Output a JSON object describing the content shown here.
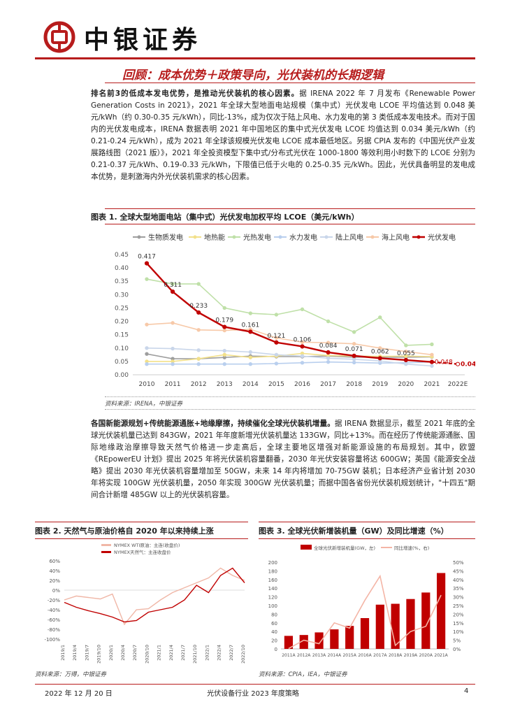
{
  "header": {
    "brand": "中银证券",
    "section_title": "回顾：成本优势＋政策导向，光伏装机的长期逻辑"
  },
  "para1": {
    "lead": "排名前3的低成本发电优势，是推动光伏装机的核心因素。",
    "body": "据 IRENA 2022 年 7 月发布《Renewable Power Generation Costs in 2021》，2021 年全球大型地面电站规模（集中式）光伏发电 LCOE 平均值达到 0.048 美元/kWh（约 0.30-0.35 元/kWh），同比-13%，成为仅次于陆上风电、水力发电的第 3 类低成本发电技术。而对于国内的光伏发电成本，IRENA 数据表明 2021 年中国地区的集中式光伏发电 LCOE 均值达到 0.034 美元/kWh（约 0.21-0.24 元/kWh），成为 2021 年全球该规模光伏发电 LCOE 成本最低地区。另据 CPIA 发布的《中国光伏产业发展路线图（2021 版）》，2021 年全投资模型下集中式/分布式光伏在 1000-1800 等效利用小时数下的 LCOE 分别为 0.21-0.37 元/kWh、0.19-0.33 元/kWh，下限值已低于火电的 0.25-0.35 元/kWh。因此，光伏具备明显的发电成本优势，是刺激海内外光伏装机需求的核心因素。"
  },
  "fig1": {
    "title": "图表 1. 全球大型地面电站（集中式）光伏发电加权平均 LCOE（美元/kWh）",
    "source": "资料来源：IRENA，中银证券"
  },
  "para2": {
    "lead": "各国新能源规划+传统能源通胀+地缘摩擦，持续催化全球光伏装机增量。",
    "body": "据 IRENA 数据显示，截至 2021 年底的全球光伏装机量已达到 843GW，2021 年年度新增光伏装机量达 133GW，同比+13%。而在经历了传统能源通胀、国际地缘政治摩擦导致天然气价格进一步走高后，全球主要地区增强对新能源设施的布局规划。其中，欧盟《REpowerEU 计划》提出 2025 年将光伏装机容量翻番，2030 年光伏安装容量将达 600GW；英国《能源安全战略》提出 2030 年光伏装机容量增加至 50GW，未来 14 年内将增加 70-75GW 装机；日本经济产业省计划 2030 年将实现 100GW 光伏装机量，2050 年实现 300GW 光伏装机量；而据中国各省份光伏装机规划统计，\"十四五\"期间合计新增 485GW 以上的光伏装机容量。"
  },
  "fig2": {
    "title": "图表 2. 天然气与原油价格自 2020 年以来持续上涨",
    "source": "资料来源：万得，中银证券"
  },
  "fig3": {
    "title": "图表 3. 全球光伏新增装机量（GW）及同比增速（%）",
    "source": "资料来源：CPIA，IEA，中银证券"
  },
  "footer": {
    "date": "2022 年 12 月 20 日",
    "title": "光伏设备行业 2023 年度策略",
    "page": "4"
  },
  "chart_data": [
    {
      "id": "lcoe",
      "type": "line",
      "categories": [
        "2010",
        "2011",
        "2012",
        "2013",
        "2014",
        "2015",
        "2016",
        "2017",
        "2018",
        "2019",
        "2020",
        "2021",
        "2022E"
      ],
      "ylim": [
        0,
        0.45
      ],
      "yticks": [
        "0.00",
        "0.05",
        "0.10",
        "0.15",
        "0.20",
        "0.25",
        "0.30",
        "0.35",
        "0.40",
        "0.45"
      ],
      "series": [
        {
          "name": "生物质发电",
          "color": "#9e9e9e",
          "values": [
            0.078,
            0.06,
            0.06,
            0.065,
            0.07,
            0.068,
            0.068,
            0.07,
            0.066,
            0.066,
            0.066,
            0.067,
            null
          ]
        },
        {
          "name": "地热能",
          "color": "#f2e08a",
          "values": [
            0.05,
            0.05,
            0.06,
            0.075,
            0.065,
            0.07,
            0.08,
            0.072,
            0.07,
            0.069,
            0.07,
            0.068,
            null
          ]
        },
        {
          "name": "光热发电",
          "color": "#bfe0a8",
          "values": [
            0.358,
            0.34,
            0.34,
            0.25,
            0.23,
            0.225,
            0.245,
            0.2,
            0.16,
            0.215,
            0.11,
            0.114,
            null
          ]
        },
        {
          "name": "水力发电",
          "color": "#b9cfee",
          "values": [
            0.04,
            0.04,
            0.04,
            0.04,
            0.04,
            0.042,
            0.045,
            0.048,
            0.046,
            0.044,
            0.045,
            0.048,
            null
          ]
        },
        {
          "name": "陆上风电",
          "color": "#c9d6ea",
          "values": [
            0.1,
            0.098,
            0.092,
            0.09,
            0.085,
            0.075,
            0.07,
            0.062,
            0.058,
            0.052,
            0.04,
            0.033,
            null
          ]
        },
        {
          "name": "海上风电",
          "color": "#f7c9a8",
          "values": [
            0.188,
            0.194,
            0.168,
            0.166,
            0.17,
            0.138,
            0.122,
            0.12,
            0.116,
            0.1,
            0.087,
            0.075,
            null
          ]
        },
        {
          "name": "光伏发电",
          "color": "#c00000",
          "values": [
            0.417,
            0.311,
            0.233,
            0.179,
            0.161,
            0.121,
            0.106,
            0.084,
            0.071,
            0.062,
            0.055,
            0.048,
            0.04
          ],
          "labels": [
            "0.417",
            "0.311",
            "0.233",
            "0.179",
            "0.161",
            "0.121",
            "0.106",
            "0.084",
            "0.071",
            "0.062",
            "0.055",
            "0.048",
            "0.04"
          ]
        }
      ]
    },
    {
      "id": "oilgas",
      "type": "line",
      "legend": [
        "NYMEX WTI原油：主连(收盘价)",
        "NYMEX天然气：主连收盘价"
      ],
      "yticks": [
        "60%",
        "40%",
        "20%",
        "0%",
        "-20%",
        "-40%",
        "-60%",
        "-80%",
        "-100%"
      ],
      "ylim": [
        -100,
        60
      ],
      "x": [
        "2019/1",
        "2019/4",
        "2019/7",
        "2019/10",
        "2020/1",
        "2020/4",
        "2020/7",
        "2020/10",
        "2021/1",
        "2021/4",
        "2021/7",
        "2021/10",
        "2022/1",
        "2022/4",
        "2022/7",
        "2022/10"
      ],
      "series": [
        {
          "name": "NYMEX WTI原油：主连(收盘价)",
          "color": "#f0b7a7",
          "values": [
            -20,
            -12,
            -15,
            -18,
            -8,
            -70,
            -40,
            -38,
            -20,
            -5,
            5,
            15,
            25,
            45,
            30,
            20
          ]
        },
        {
          "name": "NYMEX天然气：主连收盘价",
          "color": "#c00000",
          "values": [
            -25,
            -35,
            -42,
            -48,
            -55,
            -65,
            -62,
            -45,
            -40,
            -35,
            -20,
            10,
            -5,
            30,
            45,
            15
          ]
        }
      ]
    },
    {
      "id": "pv_install",
      "type": "bar",
      "categories": [
        "2011A",
        "2012A",
        "2013A",
        "2014A",
        "2015A",
        "2016A",
        "2017A",
        "2018A",
        "2019A",
        "2020A",
        "2021A"
      ],
      "legend": [
        "全球光伏新增装机量(GW，左)",
        "同比增速(%，右)"
      ],
      "yticks_left": [
        "0",
        "20",
        "40",
        "60",
        "80",
        "100",
        "120",
        "140",
        "160",
        "180",
        "200"
      ],
      "yticks_right": [
        "0%",
        "5%",
        "10%",
        "15%",
        "20%",
        "25%",
        "30%",
        "35%",
        "40%",
        "45%",
        "50%"
      ],
      "ylim_left": [
        0,
        200
      ],
      "ylim_right": [
        0,
        50
      ],
      "values": [
        30,
        32,
        38,
        45,
        53,
        71,
        102,
        104,
        115,
        130,
        175
      ],
      "growth": [
        0.2,
        5,
        3,
        15,
        12,
        28,
        42,
        2,
        10,
        13,
        31
      ]
    }
  ]
}
